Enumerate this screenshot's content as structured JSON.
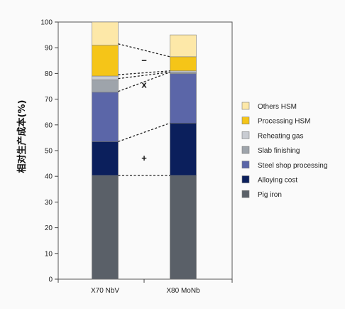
{
  "chart_data": {
    "type": "bar",
    "stacked": true,
    "categories": [
      "X70 NbV",
      "X80 MoNb"
    ],
    "ylabel": "相对生产成本(%)",
    "ylim": [
      0,
      100
    ],
    "yticks": [
      0,
      10,
      20,
      30,
      40,
      50,
      60,
      70,
      80,
      90,
      100
    ],
    "grid": false,
    "legend_position": "right",
    "series": [
      {
        "name": "Pig iron",
        "color": "#5a6068",
        "values": [
          40.3,
          40.3
        ]
      },
      {
        "name": "Alloying cost",
        "color": "#0b1f5c",
        "values": [
          13.2,
          20.4
        ]
      },
      {
        "name": "Steel shop processing",
        "color": "#5b66a8",
        "values": [
          19.2,
          19.2
        ]
      },
      {
        "name": "Slab finishing",
        "color": "#9ea4ab",
        "values": [
          4.8,
          0.6
        ]
      },
      {
        "name": "Reheating gas",
        "color": "#c9ccd2",
        "values": [
          1.5,
          0.5
        ]
      },
      {
        "name": "Processing HSM",
        "color": "#f5c518",
        "values": [
          12.0,
          5.5
        ]
      },
      {
        "name": "Others HSM",
        "color": "#fde8a8",
        "values": [
          9.0,
          8.5
        ]
      }
    ],
    "legend_order": [
      "Others HSM",
      "Processing HSM",
      "Reheating gas",
      "Slab finishing",
      "Steel shop processing",
      "Alloying cost",
      "Pig iron"
    ],
    "annotations": [
      {
        "text": "−",
        "category_gap": "between",
        "y": 85
      },
      {
        "text": "x",
        "category_gap": "between",
        "y": 75.5
      },
      {
        "text": "+",
        "category_gap": "between",
        "y": 47
      }
    ],
    "connectors": [
      {
        "from_y": 91.5,
        "to_y": 86.5
      },
      {
        "from_y": 79.5,
        "to_y": 81.0
      },
      {
        "from_y": 78.0,
        "to_y": 80.5
      },
      {
        "from_y": 73.0,
        "to_y": 80.5
      },
      {
        "from_y": 53.5,
        "to_y": 60.7
      },
      {
        "from_y": 40.3,
        "to_y": 40.3
      }
    ]
  }
}
